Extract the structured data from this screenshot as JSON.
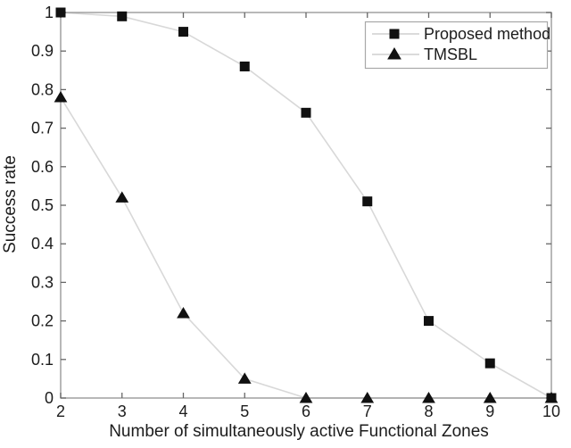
{
  "figure": {
    "background": "#ffffff"
  },
  "chart_data": {
    "type": "line",
    "title": "",
    "xlabel": "Number of simultaneously active Functional Zones",
    "ylabel": "Success rate",
    "x": [
      2,
      3,
      4,
      5,
      6,
      7,
      8,
      9,
      10
    ],
    "series": [
      {
        "name": "Proposed method",
        "marker": "square",
        "values": [
          1,
          0.99,
          0.95,
          0.86,
          0.74,
          0.51,
          0.2,
          0.09,
          0
        ]
      },
      {
        "name": "TMSBL",
        "marker": "triangle",
        "values": [
          0.78,
          0.52,
          0.22,
          0.05,
          0,
          0,
          0,
          0,
          0
        ]
      }
    ],
    "xlim": [
      2,
      10
    ],
    "ylim": [
      0,
      1
    ],
    "xticks": [
      2,
      3,
      4,
      5,
      6,
      7,
      8,
      9,
      10
    ],
    "xtick_labels": [
      "2",
      "3",
      "4",
      "5",
      "6",
      "7",
      "8",
      "9",
      "10"
    ],
    "ytick_labels": [
      "0",
      "0.1",
      "0.2",
      "0.3",
      "0.4",
      "0.5",
      "0.6",
      "0.7",
      "0.8",
      "0.9",
      "1"
    ],
    "grid": false,
    "legend_position": "upper right",
    "colors": {
      "series_line": "#d8d8d8",
      "marker": "#111111",
      "frame": "#9a9a9a",
      "tick": "#666666",
      "text": "#1c1c1c",
      "legend_border": "#a8a8a8",
      "background": "#ffffff"
    }
  }
}
